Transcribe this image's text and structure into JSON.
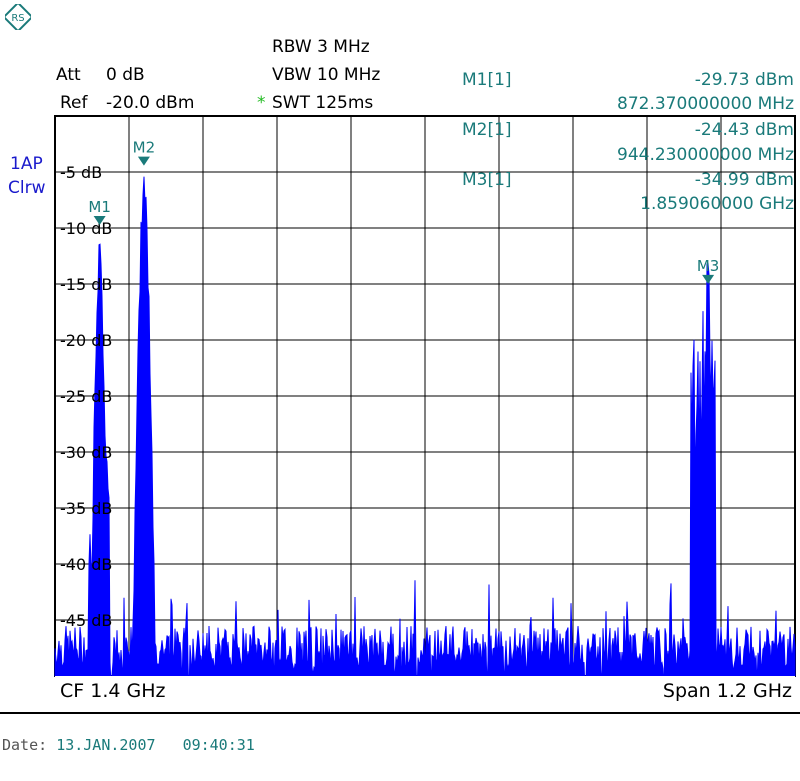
{
  "header": {
    "att_label": "Att",
    "att_value": "0 dB",
    "ref_label": "Ref",
    "ref_value": "-20.0 dBm",
    "rbw": "RBW 3 MHz",
    "vbw": "VBW 10 MHz",
    "swt_star": "*",
    "swt": "SWT 125ms"
  },
  "trace_info": {
    "line1": "1AP",
    "line2": "Clrw"
  },
  "markers": [
    {
      "id": "M1[1]",
      "level": "-29.73 dBm",
      "freq": "872.370000000 MHz"
    },
    {
      "id": "M2[1]",
      "level": "-24.43 dBm",
      "freq": "944.230000000 MHz"
    },
    {
      "id": "M3[1]",
      "level": "-34.99 dBm",
      "freq": "1.859060000 GHz"
    }
  ],
  "footer": {
    "cf": "CF 1.4 GHz",
    "span": "Span 1.2 GHz"
  },
  "date": {
    "label": "Date:",
    "day": "13.JAN.2007",
    "time": "09:40:31"
  },
  "colors": {
    "trace": "#0000ff",
    "marker": "#1a7a7a",
    "text": "#000000",
    "grid": "#000000"
  },
  "chart_data": {
    "type": "line",
    "xlim_ghz": [
      0.8,
      2.0
    ],
    "ylim_db": [
      -50,
      0
    ],
    "y_tick_labels": [
      "-5 dB",
      "-10 dB",
      "-15 dB",
      "-20 dB",
      "-25 dB",
      "-30 dB",
      "-35 dB",
      "-40 dB",
      "-45 dB"
    ],
    "y_tick_values": [
      -5,
      -10,
      -15,
      -20,
      -25,
      -30,
      -35,
      -40,
      -45
    ],
    "grid": true,
    "noise_floor_db": -47.5,
    "peaks": [
      {
        "label": "M1",
        "x_ghz": 0.8724,
        "y_db": -9.73
      },
      {
        "label": "M2",
        "x_ghz": 0.9442,
        "y_db": -4.43
      },
      {
        "label": "M3",
        "x_ghz": 1.8591,
        "y_db": -14.99
      }
    ]
  }
}
